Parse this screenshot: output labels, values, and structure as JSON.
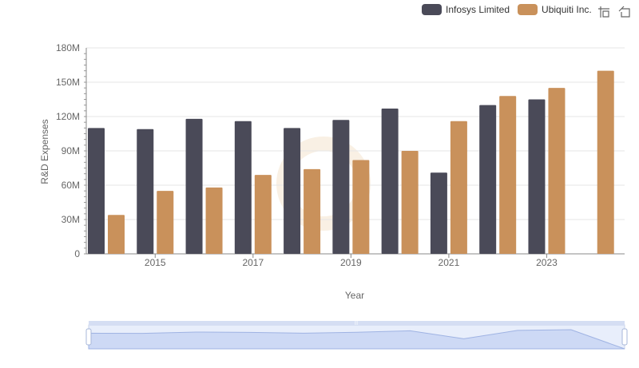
{
  "legend": {
    "items": [
      {
        "name": "Infosys Limited",
        "color": "#4a4a58"
      },
      {
        "name": "Ubiquiti Inc.",
        "color": "#c9915b"
      }
    ]
  },
  "toolbar": {
    "icons": [
      "zoom-select-icon",
      "zoom-reset-icon"
    ]
  },
  "chart_data": {
    "type": "bar",
    "xlabel": "Year",
    "ylabel": "R&D Expenses",
    "ylim": [
      0,
      180000000
    ],
    "yticks": [
      0,
      30000000,
      60000000,
      90000000,
      120000000,
      150000000,
      180000000
    ],
    "ytick_labels": [
      "0",
      "30M",
      "60M",
      "90M",
      "120M",
      "150M",
      "180M"
    ],
    "categories": [
      "2014",
      "2015",
      "2016",
      "2017",
      "2018",
      "2019",
      "2020",
      "2021",
      "2022",
      "2023",
      "2024"
    ],
    "xtick_labels": [
      "2015",
      "2017",
      "2019",
      "2021",
      "2023"
    ],
    "series": [
      {
        "name": "Infosys Limited",
        "color": "#4a4a58",
        "values": [
          110000000,
          109000000,
          118000000,
          116000000,
          110000000,
          117000000,
          127000000,
          71000000,
          130000000,
          135000000,
          null
        ]
      },
      {
        "name": "Ubiquiti Inc.",
        "color": "#c9915b",
        "values": [
          34000000,
          55000000,
          58000000,
          69000000,
          74000000,
          82000000,
          90000000,
          116000000,
          138000000,
          145000000,
          160000000
        ]
      }
    ],
    "grid": true,
    "legend_position": "top-right",
    "has_datazoom_slider": true
  }
}
